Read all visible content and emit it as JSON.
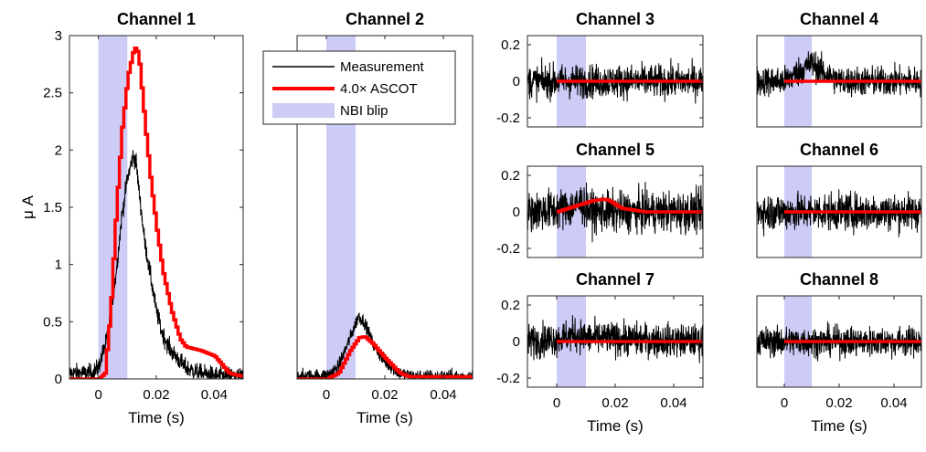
{
  "chart_data": [
    {
      "type": "line",
      "title": "Channel 1",
      "xlabel": "Time (s)",
      "ylabel": "μ A",
      "xlim": [
        -0.01,
        0.05
      ],
      "ylim": [
        0,
        3
      ],
      "xticks": [
        0,
        0.02,
        0.04
      ],
      "xtick_labels": [
        "0",
        "0.02",
        "0.04"
      ],
      "yticks": [
        0,
        0.5,
        1,
        1.5,
        2,
        2.5,
        3
      ],
      "ytick_labels": [
        "0",
        "0.5",
        "1",
        "1.5",
        "2",
        "2.5",
        "3"
      ],
      "blip": [
        0,
        0.01
      ],
      "series": [
        {
          "name": "Measurement",
          "color": "#000000",
          "noise": 0.04,
          "x": [
            -0.01,
            -0.002,
            0.0,
            0.003,
            0.006,
            0.008,
            0.01,
            0.012,
            0.013,
            0.014,
            0.016,
            0.018,
            0.02,
            0.022,
            0.025,
            0.03,
            0.035,
            0.04,
            0.05
          ],
          "y": [
            0.05,
            0.05,
            0.1,
            0.35,
            0.9,
            1.4,
            1.75,
            1.95,
            1.9,
            1.65,
            1.2,
            0.9,
            0.6,
            0.4,
            0.25,
            0.1,
            0.05,
            0.03,
            0.02
          ]
        },
        {
          "name": "4.0× ASCOT",
          "color": "#ff0000",
          "x": [
            -0.01,
            0.0,
            0.002,
            0.004,
            0.006,
            0.008,
            0.01,
            0.012,
            0.013,
            0.014,
            0.016,
            0.018,
            0.02,
            0.022,
            0.025,
            0.028,
            0.03,
            0.035,
            0.04,
            0.045,
            0.05
          ],
          "y": [
            0,
            0,
            0.05,
            0.6,
            1.5,
            2.2,
            2.65,
            2.88,
            2.9,
            2.75,
            2.2,
            1.7,
            1.3,
            0.95,
            0.6,
            0.35,
            0.28,
            0.25,
            0.2,
            0.05,
            0.02
          ]
        }
      ]
    },
    {
      "type": "line",
      "title": "Channel 2",
      "xlabel": "Time (s)",
      "xlim": [
        -0.01,
        0.05
      ],
      "ylim": [
        0,
        3
      ],
      "xticks": [
        0,
        0.02,
        0.04
      ],
      "xtick_labels": [
        "0",
        "0.02",
        "0.04"
      ],
      "yticks": [],
      "ytick_labels": [],
      "blip": [
        0,
        0.01
      ],
      "series": [
        {
          "name": "Measurement",
          "color": "#000000",
          "noise": 0.03,
          "x": [
            -0.01,
            0.0,
            0.004,
            0.008,
            0.011,
            0.013,
            0.016,
            0.02,
            0.025,
            0.03,
            0.05
          ],
          "y": [
            0.02,
            0.03,
            0.1,
            0.35,
            0.55,
            0.5,
            0.3,
            0.15,
            0.05,
            0.02,
            0.02
          ]
        },
        {
          "name": "4.0× ASCOT",
          "color": "#ff0000",
          "x": [
            -0.01,
            0.0,
            0.004,
            0.008,
            0.011,
            0.013,
            0.016,
            0.02,
            0.025,
            0.028,
            0.05
          ],
          "y": [
            0,
            0,
            0.05,
            0.25,
            0.36,
            0.37,
            0.3,
            0.18,
            0.05,
            0.02,
            0.02
          ]
        }
      ],
      "legend": {
        "position": "top-left",
        "entries": [
          {
            "label": "Measurement",
            "kind": "line",
            "color": "#000000"
          },
          {
            "label": "4.0× ASCOT",
            "kind": "line",
            "color": "#ff0000"
          },
          {
            "label": "NBI blip",
            "kind": "patch",
            "color": "#ccccf7"
          }
        ]
      }
    },
    {
      "type": "line",
      "title": "Channel 3",
      "xlim": [
        -0.01,
        0.05
      ],
      "ylim": [
        -0.25,
        0.25
      ],
      "xticks": [],
      "xtick_labels": [],
      "yticks": [
        -0.2,
        0,
        0.2
      ],
      "ytick_labels": [
        "-0.2",
        "0",
        "0.2"
      ],
      "blip": [
        0,
        0.01
      ],
      "series": [
        {
          "name": "Measurement",
          "color": "#000000",
          "noise": 0.045,
          "x": [
            -0.01,
            0.05
          ],
          "y": [
            0,
            0
          ]
        },
        {
          "name": "4.0× ASCOT",
          "color": "#ff0000",
          "x": [
            0,
            0.05
          ],
          "y": [
            0,
            0
          ]
        }
      ]
    },
    {
      "type": "line",
      "title": "Channel 4",
      "xlim": [
        -0.01,
        0.05
      ],
      "ylim": [
        -0.25,
        0.25
      ],
      "xticks": [],
      "xtick_labels": [],
      "yticks": [],
      "ytick_labels": [],
      "blip": [
        0,
        0.01
      ],
      "series": [
        {
          "name": "Measurement",
          "color": "#000000",
          "noise": 0.04,
          "x": [
            -0.01,
            0.0,
            0.006,
            0.01,
            0.014,
            0.02,
            0.05
          ],
          "y": [
            0,
            0,
            0.06,
            0.1,
            0.05,
            0.0,
            0.0
          ]
        },
        {
          "name": "4.0× ASCOT",
          "color": "#ff0000",
          "x": [
            0,
            0.05
          ],
          "y": [
            0,
            0
          ]
        }
      ]
    },
    {
      "type": "line",
      "title": "Channel 5",
      "xlim": [
        -0.01,
        0.05
      ],
      "ylim": [
        -0.25,
        0.25
      ],
      "xticks": [],
      "xtick_labels": [],
      "yticks": [
        -0.2,
        0,
        0.2
      ],
      "ytick_labels": [
        "-0.2",
        "0",
        "0.2"
      ],
      "blip": [
        0,
        0.01
      ],
      "series": [
        {
          "name": "Measurement",
          "color": "#000000",
          "noise": 0.055,
          "x": [
            -0.01,
            0.005,
            0.008,
            0.012,
            0.05
          ],
          "y": [
            0,
            0.02,
            0.05,
            0.0,
            0.0
          ]
        },
        {
          "name": "4.0× ASCOT",
          "color": "#ff0000",
          "x": [
            0,
            0.004,
            0.008,
            0.012,
            0.016,
            0.018,
            0.022,
            0.03,
            0.05
          ],
          "y": [
            0,
            0.02,
            0.04,
            0.06,
            0.07,
            0.06,
            0.02,
            0.0,
            0.0
          ]
        }
      ]
    },
    {
      "type": "line",
      "title": "Channel 6",
      "xlim": [
        -0.01,
        0.05
      ],
      "ylim": [
        -0.25,
        0.25
      ],
      "xticks": [],
      "xtick_labels": [],
      "yticks": [],
      "ytick_labels": [],
      "blip": [
        0,
        0.01
      ],
      "series": [
        {
          "name": "Measurement",
          "color": "#000000",
          "noise": 0.05,
          "x": [
            -0.01,
            0.05
          ],
          "y": [
            0,
            0
          ]
        },
        {
          "name": "4.0× ASCOT",
          "color": "#ff0000",
          "x": [
            0,
            0.05
          ],
          "y": [
            0,
            0
          ]
        }
      ]
    },
    {
      "type": "line",
      "title": "Channel 7",
      "xlabel": "Time (s)",
      "xlim": [
        -0.01,
        0.05
      ],
      "ylim": [
        -0.25,
        0.25
      ],
      "xticks": [
        0,
        0.02,
        0.04
      ],
      "xtick_labels": [
        "0",
        "0.02",
        "0.04"
      ],
      "yticks": [
        -0.2,
        0,
        0.2
      ],
      "ytick_labels": [
        "-0.2",
        "0",
        "0.2"
      ],
      "blip": [
        0,
        0.01
      ],
      "series": [
        {
          "name": "Measurement",
          "color": "#000000",
          "noise": 0.045,
          "x": [
            -0.01,
            0.002,
            0.006,
            0.01,
            0.05
          ],
          "y": [
            0,
            0.02,
            0.04,
            0.02,
            0.0
          ]
        },
        {
          "name": "4.0× ASCOT",
          "color": "#ff0000",
          "x": [
            0,
            0.05
          ],
          "y": [
            0,
            0
          ]
        }
      ]
    },
    {
      "type": "line",
      "title": "Channel 8",
      "xlabel": "Time (s)",
      "xlim": [
        -0.01,
        0.05
      ],
      "ylim": [
        -0.25,
        0.25
      ],
      "xticks": [
        0,
        0.02,
        0.04
      ],
      "xtick_labels": [
        "0",
        "0.02",
        "0.04"
      ],
      "yticks": [],
      "ytick_labels": [],
      "blip": [
        0,
        0.01
      ],
      "series": [
        {
          "name": "Measurement",
          "color": "#000000",
          "noise": 0.04,
          "x": [
            -0.01,
            0.05
          ],
          "y": [
            0,
            0
          ]
        },
        {
          "name": "4.0× ASCOT",
          "color": "#ff0000",
          "x": [
            0,
            0.05
          ],
          "y": [
            0,
            0
          ]
        }
      ]
    }
  ]
}
